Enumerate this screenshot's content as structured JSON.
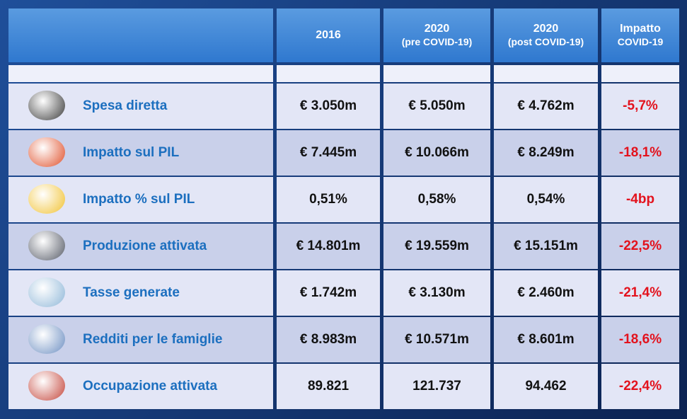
{
  "header": {
    "columns": [
      [
        "2016"
      ],
      [
        "2020",
        "(pre COVID-19)"
      ],
      [
        "2020",
        "(post COVID-19)"
      ],
      [
        "Impatto",
        "COVID-19"
      ]
    ]
  },
  "table": {
    "rows": [
      [
        "Spesa diretta",
        "€ 3.050m",
        "€ 5.050m",
        "€ 4.762m",
        "-5,7%"
      ],
      [
        "Impatto sul PIL",
        "€ 7.445m",
        "€ 10.066m",
        "€ 8.249m",
        "-18,1%"
      ],
      [
        "Impatto % sul PIL",
        "0,51%",
        "0,58%",
        "0,54%",
        "-4bp"
      ],
      [
        "Produzione attivata",
        "€ 14.801m",
        "€ 19.559m",
        "€ 15.151m",
        "-22,5%"
      ],
      [
        "Tasse generate",
        "€ 1.742m",
        "€ 3.130m",
        "€ 2.460m",
        "-21,4%"
      ],
      [
        "Redditi per le famiglie",
        "€ 8.983m",
        "€ 10.571m",
        "€ 8.601m",
        "-18,6%"
      ],
      [
        "Occupazione attivata",
        "89.821",
        "121.737",
        "94.462",
        "-22,4%"
      ]
    ]
  }
}
